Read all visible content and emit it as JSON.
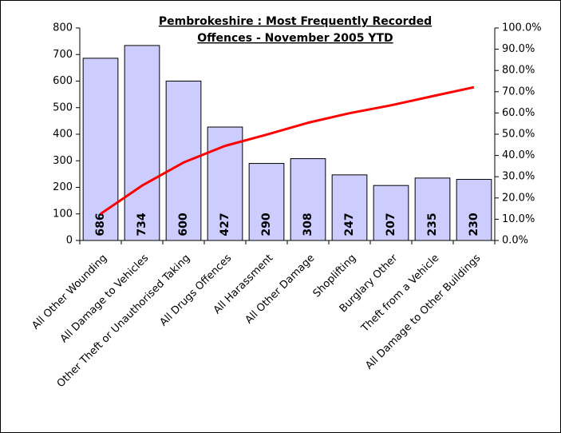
{
  "chart_data": {
    "type": "bar",
    "title": [
      "Pembrokeshire : Most Frequently Recorded",
      "Offences - November 2005 YTD"
    ],
    "categories": [
      "All Other Wounding",
      "All Damage to Vehicles",
      "Other Theft or Unauthorised Taking",
      "All Drugs Offences",
      "All Harassment",
      "All Other Damage",
      "Shoplifting",
      "Burglary Other",
      "Theft from a Vehicle",
      "All Damage to Other Buildings"
    ],
    "series": [
      {
        "type": "bar",
        "color": "#ccccff",
        "values": [
          686,
          734,
          600,
          427,
          290,
          308,
          247,
          207,
          235,
          230
        ]
      },
      {
        "type": "line",
        "color": "#ff0000",
        "axis": "y2",
        "values": [
          12.5,
          25.8,
          36.7,
          44.5,
          49.8,
          55.4,
          59.9,
          63.6,
          67.9,
          72.1
        ]
      }
    ],
    "ylim": [
      0,
      800
    ],
    "yticks": [
      0,
      100,
      200,
      300,
      400,
      500,
      600,
      700,
      800
    ],
    "y2lim": [
      0,
      100
    ],
    "y2ticks": [
      {
        "value": 0,
        "label": "0.0%"
      },
      {
        "value": 10,
        "label": "10.0%"
      },
      {
        "value": 20,
        "label": "20.0%"
      },
      {
        "value": 30,
        "label": "30.0%"
      },
      {
        "value": 40,
        "label": "40.0%"
      },
      {
        "value": 50,
        "label": "50.0%"
      },
      {
        "value": 60,
        "label": "60.0%"
      },
      {
        "value": 70,
        "label": "70.0%"
      },
      {
        "value": 80,
        "label": "80.0%"
      },
      {
        "value": 90,
        "label": "90.0%"
      },
      {
        "value": 100,
        "label": "100.0%"
      }
    ],
    "grid": false
  }
}
